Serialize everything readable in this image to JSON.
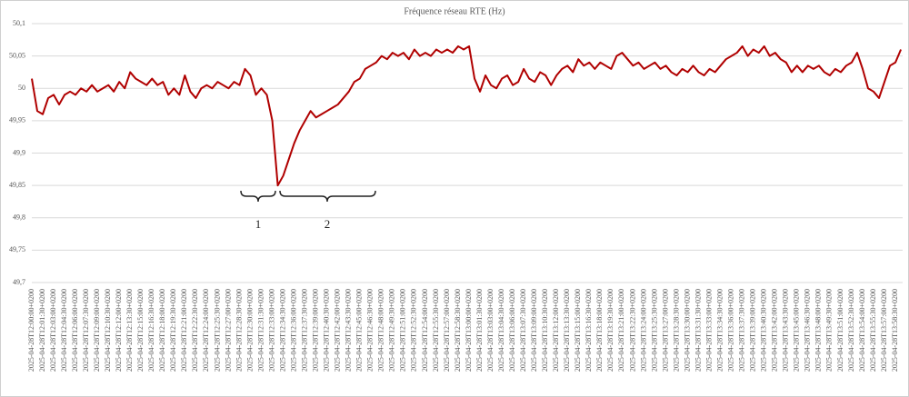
{
  "chart_data": {
    "type": "line",
    "title": "Fréquence réseau RTE (Hz)",
    "categories": [
      "2025-04-28T12:00:00+0200",
      null,
      "2025-04-28T12:01:30+0200",
      null,
      "2025-04-28T12:03:00+0200",
      null,
      "2025-04-28T12:04:30+0200",
      null,
      "2025-04-28T12:06:00+0200",
      null,
      "2025-04-28T12:07:30+0200",
      null,
      "2025-04-28T12:09:00+0200",
      null,
      "2025-04-28T12:10:30+0200",
      null,
      "2025-04-28T12:12:00+0200",
      null,
      "2025-04-28T12:13:30+0200",
      null,
      "2025-04-28T12:15:00+0200",
      null,
      "2025-04-28T12:16:30+0200",
      null,
      "2025-04-28T12:18:00+0200",
      null,
      "2025-04-28T12:19:30+0200",
      null,
      "2025-04-28T12:21:00+0200",
      null,
      "2025-04-28T12:22:30+0200",
      null,
      "2025-04-28T12:24:00+0200",
      null,
      "2025-04-28T12:25:30+0200",
      null,
      "2025-04-28T12:27:00+0200",
      null,
      "2025-04-28T12:28:30+0200",
      null,
      "2025-04-28T12:30:00+0200",
      null,
      "2025-04-28T12:31:30+0200",
      null,
      "2025-04-28T12:33:00+0200",
      null,
      "2025-04-28T12:34:30+0200",
      null,
      "2025-04-28T12:36:00+0200",
      null,
      "2025-04-28T12:37:30+0200",
      null,
      "2025-04-28T12:39:00+0200",
      null,
      "2025-04-28T12:40:30+0200",
      null,
      "2025-04-28T12:42:00+0200",
      null,
      "2025-04-28T12:43:30+0200",
      null,
      "2025-04-28T12:45:00+0200",
      null,
      "2025-04-28T12:46:30+0200",
      null,
      "2025-04-28T12:48:00+0200",
      null,
      "2025-04-28T12:49:30+0200",
      null,
      "2025-04-28T12:51:00+0200",
      null,
      "2025-04-28T12:52:30+0200",
      null,
      "2025-04-28T12:54:00+0200",
      null,
      "2025-04-28T12:55:30+0200",
      null,
      "2025-04-28T12:57:00+0200",
      null,
      "2025-04-28T12:58:30+0200",
      null,
      "2025-04-28T13:00:00+0200",
      null,
      "2025-04-28T13:01:30+0200",
      null,
      "2025-04-28T13:03:00+0200",
      null,
      "2025-04-28T13:04:30+0200",
      null,
      "2025-04-28T13:06:00+0200",
      null,
      "2025-04-28T13:07:30+0200",
      null,
      "2025-04-28T13:09:00+0200",
      null,
      "2025-04-28T13:10:30+0200",
      null,
      "2025-04-28T13:12:00+0200",
      null,
      "2025-04-28T13:13:30+0200",
      null,
      "2025-04-28T13:15:00+0200",
      null,
      "2025-04-28T13:16:30+0200",
      null,
      "2025-04-28T13:18:00+0200",
      null,
      "2025-04-28T13:19:30+0200",
      null,
      "2025-04-28T13:21:00+0200",
      null,
      "2025-04-28T13:22:30+0200",
      null,
      "2025-04-28T13:24:00+0200",
      null,
      "2025-04-28T13:25:30+0200",
      null,
      "2025-04-28T13:27:00+0200",
      null,
      "2025-04-28T13:28:30+0200",
      null,
      "2025-04-28T13:30:00+0200",
      null,
      "2025-04-28T13:31:30+0200",
      null,
      "2025-04-28T13:33:00+0200",
      null,
      "2025-04-28T13:34:30+0200",
      null,
      "2025-04-28T13:36:00+0200",
      null,
      "2025-04-28T13:37:30+0200",
      null,
      "2025-04-28T13:39:00+0200",
      null,
      "2025-04-28T13:40:30+0200",
      null,
      "2025-04-28T13:42:00+0200",
      null,
      "2025-04-28T13:43:30+0200",
      null,
      "2025-04-28T13:45:00+0200",
      null,
      "2025-04-28T13:46:30+0200",
      null,
      "2025-04-28T13:48:00+0200",
      null,
      "2025-04-28T13:49:30+0200",
      null,
      "2025-04-28T13:51:00+0200",
      null,
      "2025-04-28T13:52:30+0200",
      null,
      "2025-04-28T13:54:00+0200",
      null,
      "2025-04-28T13:55:30+0200",
      null,
      "2025-04-28T13:57:00+0200",
      null,
      "2025-04-28T13:58:30+0200",
      null
    ],
    "values": [
      50.015,
      49.965,
      49.96,
      49.985,
      49.99,
      49.975,
      49.99,
      49.995,
      49.99,
      50.0,
      49.995,
      50.005,
      49.995,
      50.0,
      50.005,
      49.995,
      50.01,
      50.0,
      50.025,
      50.015,
      50.01,
      50.005,
      50.015,
      50.005,
      50.01,
      49.99,
      50.0,
      49.99,
      50.02,
      49.995,
      49.985,
      50.0,
      50.005,
      50.0,
      50.01,
      50.005,
      50.0,
      50.01,
      50.005,
      50.03,
      50.02,
      49.99,
      50.0,
      49.99,
      49.95,
      49.85,
      49.865,
      49.89,
      49.915,
      49.935,
      49.95,
      49.965,
      49.955,
      49.96,
      49.965,
      49.97,
      49.975,
      49.985,
      49.995,
      50.01,
      50.015,
      50.03,
      50.035,
      50.04,
      50.05,
      50.045,
      50.055,
      50.05,
      50.055,
      50.045,
      50.06,
      50.05,
      50.055,
      50.05,
      50.06,
      50.055,
      50.06,
      50.055,
      50.065,
      50.06,
      50.065,
      50.015,
      49.995,
      50.02,
      50.005,
      50.0,
      50.015,
      50.02,
      50.005,
      50.01,
      50.03,
      50.015,
      50.01,
      50.025,
      50.02,
      50.005,
      50.02,
      50.03,
      50.035,
      50.025,
      50.045,
      50.035,
      50.04,
      50.03,
      50.04,
      50.035,
      50.03,
      50.05,
      50.055,
      50.045,
      50.035,
      50.04,
      50.03,
      50.035,
      50.04,
      50.03,
      50.035,
      50.025,
      50.02,
      50.03,
      50.025,
      50.035,
      50.025,
      50.02,
      50.03,
      50.025,
      50.035,
      50.045,
      50.05,
      50.055,
      50.065,
      50.05,
      50.06,
      50.055,
      50.065,
      50.05,
      50.055,
      50.045,
      50.04,
      50.025,
      50.035,
      50.025,
      50.035,
      50.03,
      50.035,
      50.025,
      50.02,
      50.03,
      50.025,
      50.035,
      50.04,
      50.055,
      50.03,
      50.0,
      49.995,
      49.985,
      50.01,
      50.035,
      50.04,
      50.06
    ],
    "color": "#b00000",
    "ylim": [
      49.7,
      50.1
    ],
    "yticks": [
      {
        "value": 49.7,
        "label": "49,7"
      },
      {
        "value": 49.75,
        "label": "49,75"
      },
      {
        "value": 49.8,
        "label": "49,8"
      },
      {
        "value": 49.85,
        "label": "49,85"
      },
      {
        "value": 49.9,
        "label": "49,9"
      },
      {
        "value": 49.95,
        "label": "49,95"
      },
      50,
      {
        "value": 50.05,
        "label": "50,05"
      },
      {
        "value": 50.1,
        "label": "50,1"
      }
    ],
    "grid": true,
    "annotations": [
      "1",
      "2"
    ]
  }
}
